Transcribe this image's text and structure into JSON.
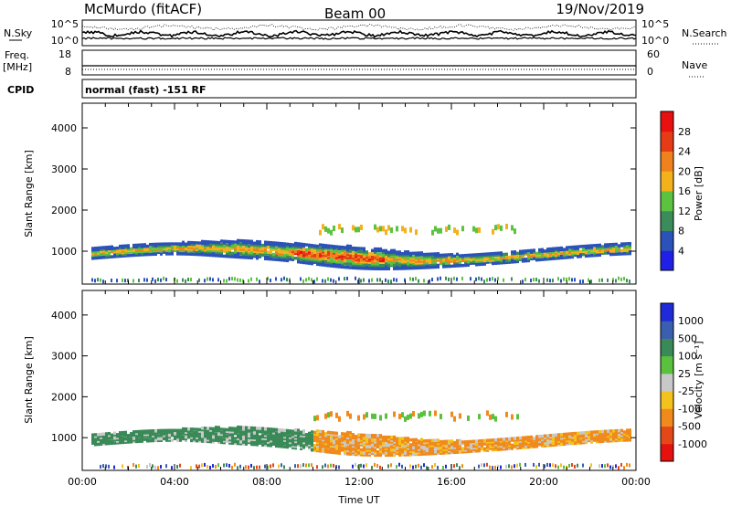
{
  "header": {
    "station": "McMurdo (fitACF)",
    "beam": "Beam 00",
    "date": "19/Nov/2019"
  },
  "top_panels": {
    "nsky_label": "N.Sky",
    "nsearch_label": "N.Search",
    "noise_ticks_left": [
      "10^5",
      "10^0"
    ],
    "noise_ticks_right": [
      "10^5",
      "10^0"
    ],
    "freq_label_1": "Freq.",
    "freq_label_2": "[MHz]",
    "freq_ticks": [
      "18",
      "8"
    ],
    "nave_label": "Nave",
    "nave_ticks": [
      "60",
      "0"
    ],
    "cpid_label": "CPID",
    "cpid_text": "normal (fast) -151 RF"
  },
  "chart_data": [
    {
      "type": "heatmap",
      "name": "power",
      "ylabel": "Slant Range [km]",
      "ylim": [
        200,
        4600
      ],
      "yticks": [
        "1000",
        "2000",
        "3000",
        "4000"
      ],
      "xlim": [
        "00:00",
        "00:00"
      ],
      "colorbar": {
        "label": "Power [dB]",
        "ticks": [
          "4",
          "8",
          "12",
          "16",
          "20",
          "24",
          "28"
        ],
        "colors": [
          "#1f1fe6",
          "#2b52b8",
          "#3b8c5a",
          "#5cc341",
          "#f3b11c",
          "#f0821e",
          "#e53b17",
          "#e8110f"
        ]
      }
    },
    {
      "type": "heatmap",
      "name": "velocity",
      "ylabel": "Slant Range [km]",
      "ylim": [
        200,
        4600
      ],
      "yticks": [
        "1000",
        "2000",
        "3000",
        "4000"
      ],
      "xlabel": "Time UT",
      "xticks": [
        "00:00",
        "04:00",
        "08:00",
        "12:00",
        "16:00",
        "20:00",
        "00:00"
      ],
      "colorbar": {
        "label": "Velocity [m s⁻¹]",
        "ticks": [
          "1000",
          "500",
          "100",
          "25",
          "-25",
          "-100",
          "-500",
          "-1000"
        ],
        "colors": [
          "#1f2ad8",
          "#3a5eb0",
          "#3a8a58",
          "#59c13e",
          "#c8c8c8",
          "#f3c21c",
          "#f08a1c",
          "#e54818",
          "#e5110f"
        ]
      }
    }
  ]
}
